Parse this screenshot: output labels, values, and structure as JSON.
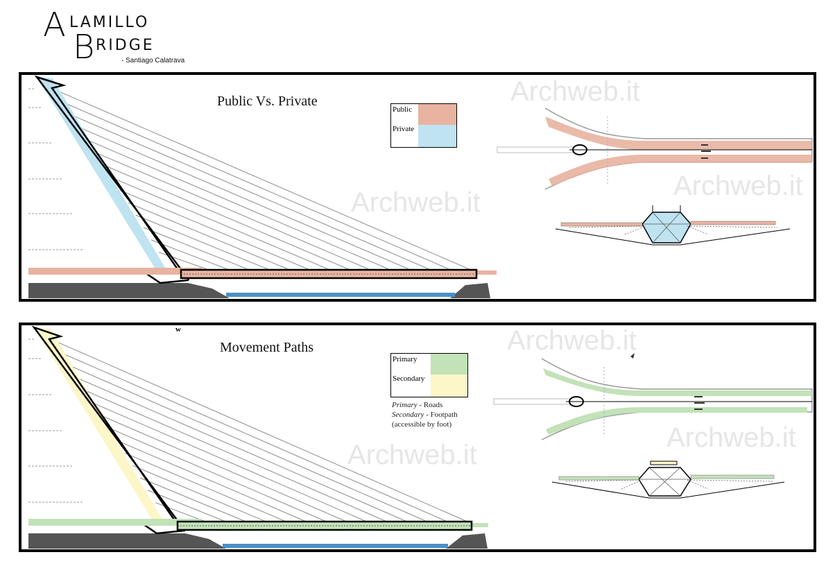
{
  "header": {
    "letter_a": "A",
    "rest_a": "LAMILLO",
    "letter_b": "B",
    "rest_b": "RIDGE",
    "author": "- Santiago Calatrava"
  },
  "panel_public": {
    "title": "Public Vs. Private",
    "legend": [
      {
        "label": "Public",
        "color": "#e8b3a0"
      },
      {
        "label": "Private",
        "color": "#bfe3f1"
      }
    ],
    "watermarks": [
      "Archweb.it",
      "Archweb.it",
      "Archweb.it"
    ]
  },
  "panel_movement": {
    "title": "Movement Paths",
    "legend": [
      {
        "label": "Primary",
        "color": "#c2e2b8"
      },
      {
        "label": "Secondary",
        "color": "#fcf6c8"
      }
    ],
    "note_primary_term": "Primary",
    "note_primary_desc": " - Roads",
    "note_secondary_term": "Secondary",
    "note_secondary_desc": " - Footpath",
    "note_line3": "(accessible by foot)",
    "stray_mark": "w",
    "watermarks": [
      "Archweb.it",
      "Archweb.it",
      "Archweb.it"
    ]
  },
  "colors": {
    "ground": "#555555",
    "water": "#4a90c8",
    "cable": "#8a8a8a",
    "outline": "#000000"
  }
}
